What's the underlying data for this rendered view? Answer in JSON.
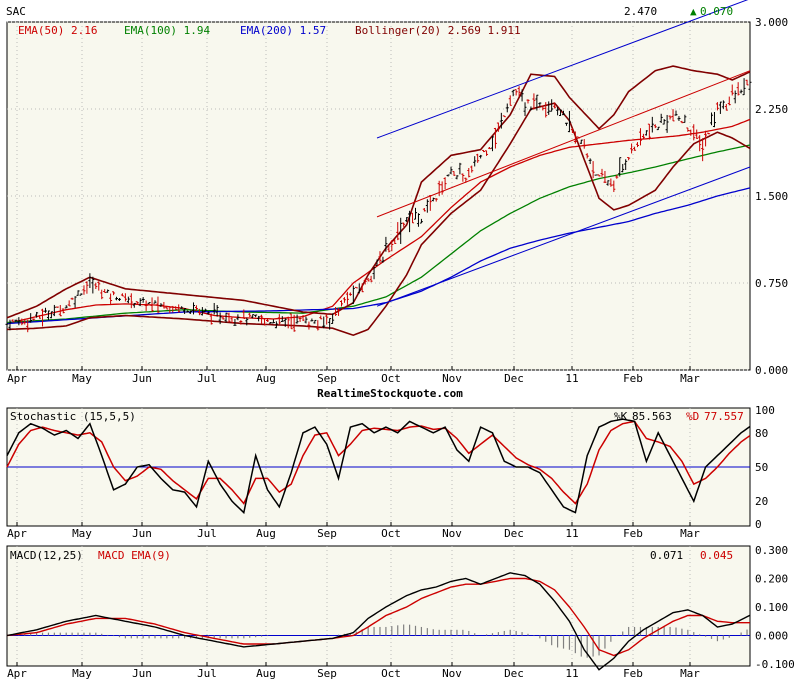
{
  "symbol": "SAC",
  "quote": {
    "last": "2.470",
    "change": "0.070",
    "change_color": "#008000"
  },
  "colors": {
    "background": "#f8f8ee",
    "frame": "#000000",
    "ema50": "#cc0000",
    "ema100": "#008000",
    "ema200": "#0000cc",
    "bollinger": "#800000",
    "channel": "#0000cc",
    "trend": "#cc0000",
    "bar": "#000000",
    "grid": "#bbbbbb",
    "k_line": "#000000",
    "d_line": "#cc0000",
    "macd_line": "#000000",
    "signal_line": "#cc0000",
    "histogram": "#808080",
    "ref_line": "#0000cc"
  },
  "legend": {
    "ema50": "EMA(50) 2.16",
    "ema100": "EMA(100) 1.94",
    "ema200": "EMA(200) 1.57",
    "bollinger": "Bollinger(20) 2.569 1.911"
  },
  "watermark": "RealtimeStockquote.com",
  "chart_data": [
    {
      "type": "ohlc",
      "title": "SAC",
      "x_axis": {
        "labels": [
          "Apr",
          "May",
          "Jun",
          "Jul",
          "Aug",
          "Sep",
          "Oct",
          "Nov",
          "Dec",
          "11",
          "Feb",
          "Mar"
        ]
      },
      "y_axis": {
        "range": [
          0,
          3.0
        ],
        "ticks": [
          "0.000",
          "0.750",
          "1.500",
          "2.250",
          "3.000"
        ]
      },
      "grid": true,
      "series": [
        {
          "name": "EMA(50)",
          "last": 2.16,
          "x": [
            0,
            10,
            20,
            30,
            40,
            50,
            60,
            70,
            80,
            90,
            100,
            110,
            117,
            128,
            140,
            150,
            160,
            170,
            180,
            190,
            200,
            210,
            219,
            227,
            235,
            245,
            251
          ],
          "values": [
            0.4,
            0.46,
            0.52,
            0.56,
            0.57,
            0.56,
            0.53,
            0.47,
            0.45,
            0.44,
            0.46,
            0.55,
            0.75,
            0.95,
            1.15,
            1.4,
            1.62,
            1.75,
            1.85,
            1.92,
            1.95,
            1.98,
            2.0,
            2.02,
            2.05,
            2.1,
            2.16
          ]
        },
        {
          "name": "EMA(100)",
          "last": 1.94,
          "x": [
            0,
            20,
            40,
            60,
            80,
            100,
            117,
            128,
            140,
            150,
            160,
            170,
            180,
            190,
            200,
            210,
            219,
            230,
            240,
            251
          ],
          "values": [
            0.41,
            0.44,
            0.49,
            0.52,
            0.5,
            0.49,
            0.55,
            0.63,
            0.8,
            1.0,
            1.2,
            1.35,
            1.48,
            1.58,
            1.65,
            1.7,
            1.75,
            1.82,
            1.88,
            1.94
          ]
        },
        {
          "name": "EMA(200)",
          "last": 1.57,
          "x": [
            0,
            30,
            60,
            90,
            117,
            128,
            140,
            150,
            160,
            170,
            180,
            190,
            200,
            210,
            219,
            230,
            240,
            251
          ],
          "values": [
            0.4,
            0.45,
            0.5,
            0.51,
            0.53,
            0.58,
            0.68,
            0.8,
            0.94,
            1.05,
            1.12,
            1.18,
            1.23,
            1.28,
            1.35,
            1.42,
            1.5,
            1.57
          ]
        },
        {
          "name": "Bollinger upper",
          "last": 2.569,
          "x": [
            0,
            10,
            20,
            28,
            40,
            60,
            80,
            100,
            110,
            117,
            122,
            128,
            135,
            140,
            150,
            160,
            170,
            177,
            185,
            190,
            200,
            205,
            210,
            219,
            225,
            232,
            240,
            245,
            251
          ],
          "values": [
            0.45,
            0.55,
            0.7,
            0.8,
            0.7,
            0.65,
            0.6,
            0.5,
            0.48,
            0.58,
            0.82,
            1.05,
            1.25,
            1.62,
            1.85,
            1.9,
            2.2,
            2.55,
            2.53,
            2.35,
            2.08,
            2.2,
            2.4,
            2.58,
            2.62,
            2.58,
            2.55,
            2.5,
            2.57
          ]
        },
        {
          "name": "Bollinger lower",
          "last": 1.911,
          "x": [
            0,
            10,
            20,
            28,
            40,
            60,
            80,
            100,
            110,
            117,
            122,
            128,
            135,
            140,
            150,
            160,
            170,
            177,
            185,
            190,
            200,
            205,
            210,
            219,
            225,
            232,
            240,
            245,
            251
          ],
          "values": [
            0.35,
            0.36,
            0.38,
            0.45,
            0.47,
            0.44,
            0.4,
            0.38,
            0.36,
            0.3,
            0.35,
            0.55,
            0.82,
            1.08,
            1.35,
            1.55,
            1.95,
            2.25,
            2.3,
            2.15,
            1.48,
            1.38,
            1.42,
            1.55,
            1.75,
            1.95,
            2.05,
            2.0,
            1.91
          ]
        },
        {
          "name": "Trend channel",
          "x": [
            125,
            251
          ],
          "values": [
            2.0,
            3.2
          ]
        },
        {
          "name": "Trend channel",
          "x": [
            125,
            251
          ],
          "values": [
            0.55,
            1.75
          ]
        },
        {
          "name": "Trend channel",
          "x": [
            125,
            251
          ],
          "values": [
            1.32,
            2.58
          ]
        }
      ],
      "ohlc_anchors": {
        "x": [
          0,
          10,
          20,
          25,
          28,
          35,
          45,
          55,
          65,
          70,
          80,
          90,
          100,
          105,
          110,
          115,
          120,
          125,
          130,
          135,
          140,
          145,
          150,
          155,
          160,
          165,
          170,
          172,
          175,
          180,
          185,
          190,
          195,
          200,
          205,
          210,
          215,
          220,
          225,
          230,
          235,
          240,
          245,
          251
        ],
        "values": [
          0.4,
          0.45,
          0.55,
          0.68,
          0.75,
          0.65,
          0.58,
          0.55,
          0.52,
          0.47,
          0.45,
          0.42,
          0.43,
          0.4,
          0.46,
          0.62,
          0.72,
          0.9,
          1.1,
          1.3,
          1.32,
          1.5,
          1.72,
          1.65,
          1.85,
          2.0,
          2.35,
          2.4,
          2.28,
          2.3,
          2.3,
          2.1,
          1.92,
          1.65,
          1.6,
          1.85,
          2.02,
          2.1,
          2.2,
          2.1,
          1.92,
          2.25,
          2.35,
          2.47
        ]
      }
    },
    {
      "type": "line",
      "title": "Stochastic (15,5,5)",
      "y_axis": {
        "range": [
          0,
          100
        ],
        "ticks": [
          "0",
          "20",
          "50",
          "80",
          "100"
        ]
      },
      "reference": 50,
      "series": [
        {
          "name": "%K",
          "last": 85.563,
          "x": [
            0,
            4,
            8,
            12,
            16,
            20,
            24,
            28,
            32,
            36,
            40,
            44,
            48,
            52,
            56,
            60,
            64,
            68,
            72,
            76,
            80,
            84,
            88,
            92,
            96,
            100,
            104,
            108,
            112,
            116,
            120,
            124,
            128,
            132,
            136,
            140,
            144,
            148,
            152,
            156,
            160,
            164,
            168,
            172,
            176,
            180,
            184,
            188,
            192,
            196,
            200,
            204,
            208,
            212,
            216,
            220,
            224,
            228,
            232,
            236,
            240,
            244,
            248,
            251
          ],
          "values": [
            60,
            80,
            88,
            84,
            78,
            82,
            75,
            88,
            60,
            30,
            35,
            50,
            52,
            40,
            30,
            28,
            15,
            55,
            35,
            20,
            10,
            60,
            30,
            15,
            45,
            80,
            85,
            70,
            40,
            85,
            88,
            80,
            85,
            80,
            90,
            85,
            80,
            85,
            65,
            55,
            85,
            80,
            55,
            50,
            50,
            45,
            30,
            15,
            10,
            60,
            85,
            90,
            92,
            90,
            55,
            80,
            60,
            40,
            20,
            50,
            60,
            70,
            80,
            85.563
          ]
        },
        {
          "name": "%D",
          "last": 77.557,
          "x": [
            0,
            4,
            8,
            12,
            16,
            20,
            24,
            28,
            32,
            36,
            40,
            44,
            48,
            52,
            56,
            60,
            64,
            68,
            72,
            76,
            80,
            84,
            88,
            92,
            96,
            100,
            104,
            108,
            112,
            116,
            120,
            124,
            128,
            132,
            136,
            140,
            144,
            148,
            152,
            156,
            160,
            164,
            168,
            172,
            176,
            180,
            184,
            188,
            192,
            196,
            200,
            204,
            208,
            212,
            216,
            220,
            224,
            228,
            232,
            236,
            240,
            244,
            248,
            251
          ],
          "values": [
            50,
            70,
            82,
            85,
            82,
            80,
            78,
            80,
            72,
            50,
            38,
            42,
            50,
            48,
            38,
            30,
            22,
            40,
            40,
            30,
            18,
            40,
            40,
            28,
            35,
            60,
            78,
            80,
            60,
            70,
            82,
            84,
            83,
            82,
            85,
            86,
            83,
            84,
            75,
            62,
            70,
            78,
            68,
            58,
            52,
            48,
            40,
            28,
            18,
            35,
            65,
            82,
            88,
            90,
            75,
            72,
            68,
            55,
            35,
            40,
            50,
            62,
            72,
            77.557
          ]
        }
      ]
    },
    {
      "type": "line",
      "title": "MACD(12,25)",
      "y_axis": {
        "range": [
          -0.1,
          0.3
        ],
        "ticks": [
          "-0.100",
          "0.000",
          "0.100",
          "0.200",
          "0.300"
        ]
      },
      "series": [
        {
          "name": "MACD(12,25)",
          "last": 0.071,
          "x": [
            0,
            10,
            20,
            30,
            40,
            50,
            60,
            70,
            80,
            90,
            100,
            110,
            117,
            122,
            128,
            135,
            140,
            145,
            150,
            155,
            160,
            165,
            170,
            175,
            180,
            185,
            190,
            195,
            200,
            205,
            210,
            215,
            220,
            225,
            230,
            235,
            240,
            245,
            251
          ],
          "values": [
            0.0,
            0.02,
            0.05,
            0.07,
            0.05,
            0.03,
            0.0,
            -0.02,
            -0.04,
            -0.03,
            -0.02,
            -0.01,
            0.01,
            0.06,
            0.1,
            0.14,
            0.16,
            0.17,
            0.19,
            0.2,
            0.18,
            0.2,
            0.22,
            0.21,
            0.18,
            0.12,
            0.05,
            -0.05,
            -0.12,
            -0.08,
            -0.02,
            0.02,
            0.05,
            0.08,
            0.09,
            0.07,
            0.03,
            0.04,
            0.071
          ]
        },
        {
          "name": "MACD EMA(9)",
          "last": 0.045,
          "x": [
            0,
            10,
            20,
            30,
            40,
            50,
            60,
            70,
            80,
            90,
            100,
            110,
            117,
            122,
            128,
            135,
            140,
            145,
            150,
            155,
            160,
            165,
            170,
            175,
            180,
            185,
            190,
            195,
            200,
            205,
            210,
            215,
            220,
            225,
            230,
            235,
            240,
            245,
            251
          ],
          "values": [
            0.0,
            0.01,
            0.04,
            0.06,
            0.06,
            0.04,
            0.01,
            -0.01,
            -0.03,
            -0.03,
            -0.02,
            -0.01,
            0.0,
            0.03,
            0.07,
            0.1,
            0.13,
            0.15,
            0.17,
            0.18,
            0.18,
            0.19,
            0.2,
            0.2,
            0.19,
            0.16,
            0.1,
            0.03,
            -0.05,
            -0.07,
            -0.05,
            -0.01,
            0.02,
            0.05,
            0.07,
            0.07,
            0.05,
            0.045,
            0.045
          ]
        }
      ]
    }
  ]
}
